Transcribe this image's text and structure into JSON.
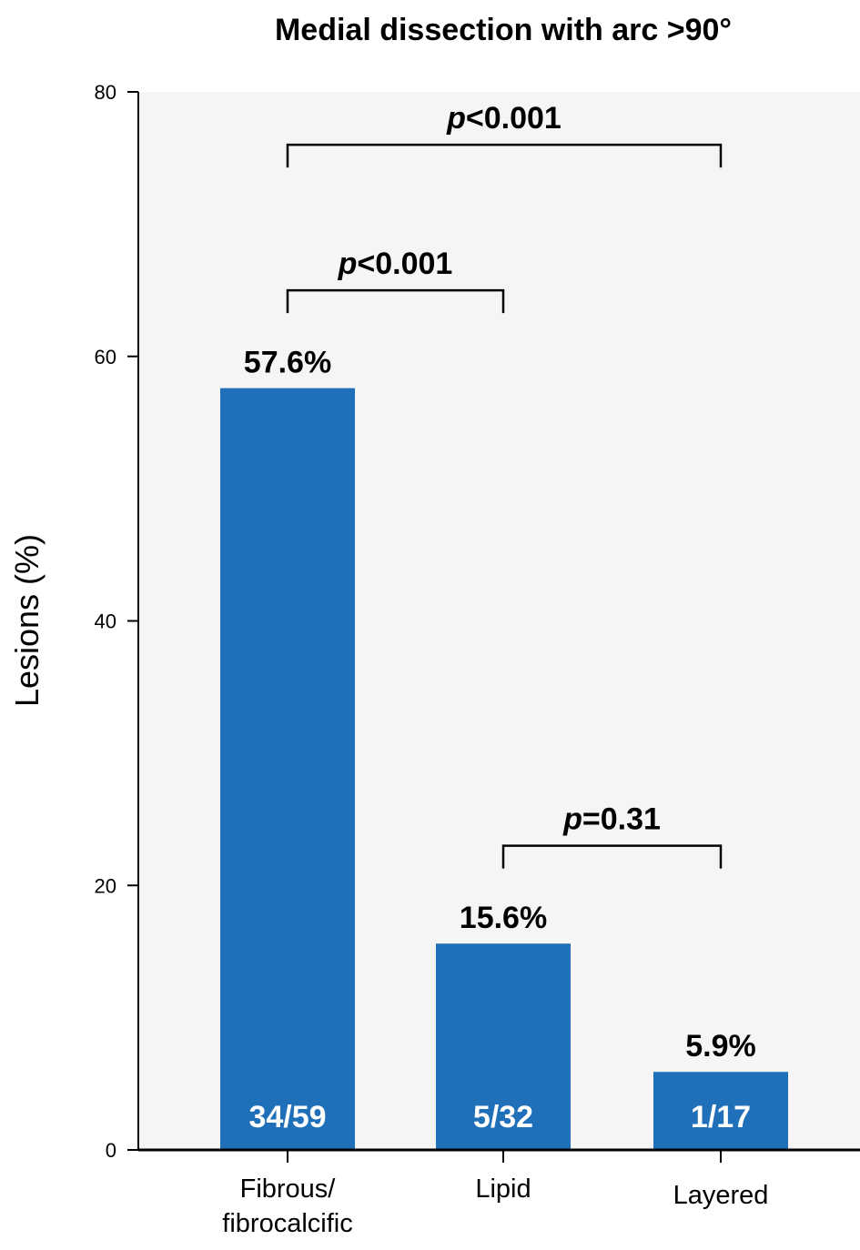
{
  "chart_data": {
    "type": "bar",
    "title": "Medial dissection with arc >90°",
    "xlabel": "",
    "ylabel": "Lesions (%)",
    "ylim": [
      0,
      80
    ],
    "yticks": [
      0,
      20,
      40,
      60,
      80
    ],
    "categories": [
      [
        "Fibrous/",
        "fibrocalcific"
      ],
      [
        "Lipid"
      ],
      [
        "Layered"
      ]
    ],
    "values": [
      57.6,
      15.6,
      5.9
    ],
    "value_labels": [
      "57.6%",
      "15.6%",
      "5.9%"
    ],
    "fraction_labels": [
      "34/59",
      "5/32",
      "1/17"
    ],
    "bar_color": "#1f70b8",
    "plot_background": "#f5f5f5",
    "grid": false,
    "comparisons": [
      {
        "from": 0,
        "to": 2,
        "y": 76,
        "p_symbol": "p",
        "p_rest": "<0.001"
      },
      {
        "from": 0,
        "to": 1,
        "y": 65,
        "p_symbol": "p",
        "p_rest": "<0.001"
      },
      {
        "from": 1,
        "to": 2,
        "y": 23,
        "p_symbol": "p",
        "p_rest": "=0.31"
      }
    ]
  }
}
